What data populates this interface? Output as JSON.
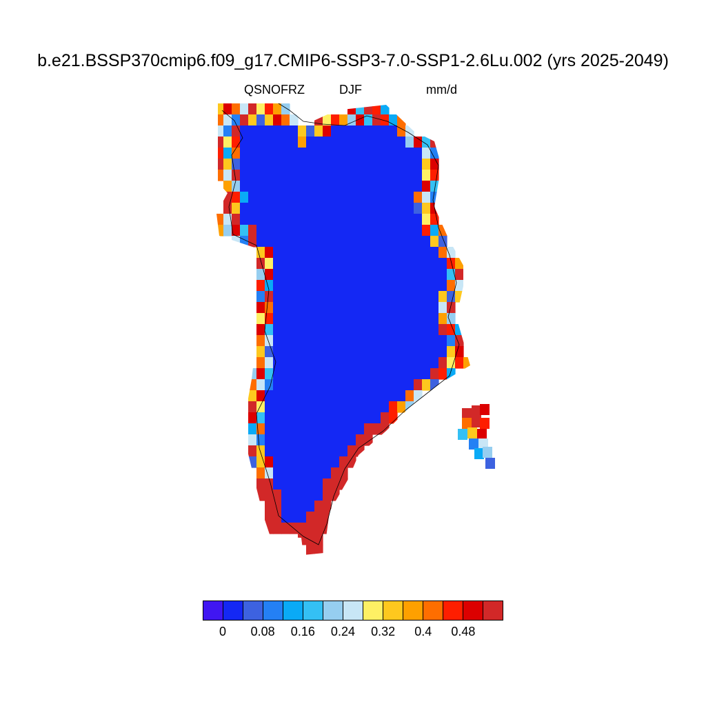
{
  "figure": {
    "title": "b.e21.BSSP370cmip6.f09_g17.CMIP6-SSP3-7.0-SSP1-2.6Lu.002 (yrs 2025-2049)",
    "variable": "QSNOFRZ",
    "season": "DJF",
    "units": "mm/d"
  },
  "colorbar": {
    "colors": [
      "#4016f2",
      "#1428f4",
      "#3d62e0",
      "#2480f4",
      "#0aaaf6",
      "#34c0f4",
      "#96cef0",
      "#c8e6f6",
      "#fef064",
      "#fec81e",
      "#fea000",
      "#fe6e00",
      "#fe1e00",
      "#dc0000",
      "#d22828"
    ],
    "labels": [
      {
        "text": "0",
        "index": 1
      },
      {
        "text": "0.08",
        "index": 3
      },
      {
        "text": "0.16",
        "index": 5
      },
      {
        "text": "0.24",
        "index": 7
      },
      {
        "text": "0.32",
        "index": 9
      },
      {
        "text": "0.4",
        "index": 11
      },
      {
        "text": "0.48",
        "index": 13
      }
    ]
  },
  "map_data": {
    "region": "Greenland",
    "interior_level": 1,
    "southern_margin_level": 14,
    "margin_levels": [
      9,
      13,
      11,
      7,
      14,
      8,
      12,
      10,
      6,
      13,
      5,
      14,
      12,
      4,
      11,
      7,
      3,
      14,
      9,
      2
    ]
  }
}
